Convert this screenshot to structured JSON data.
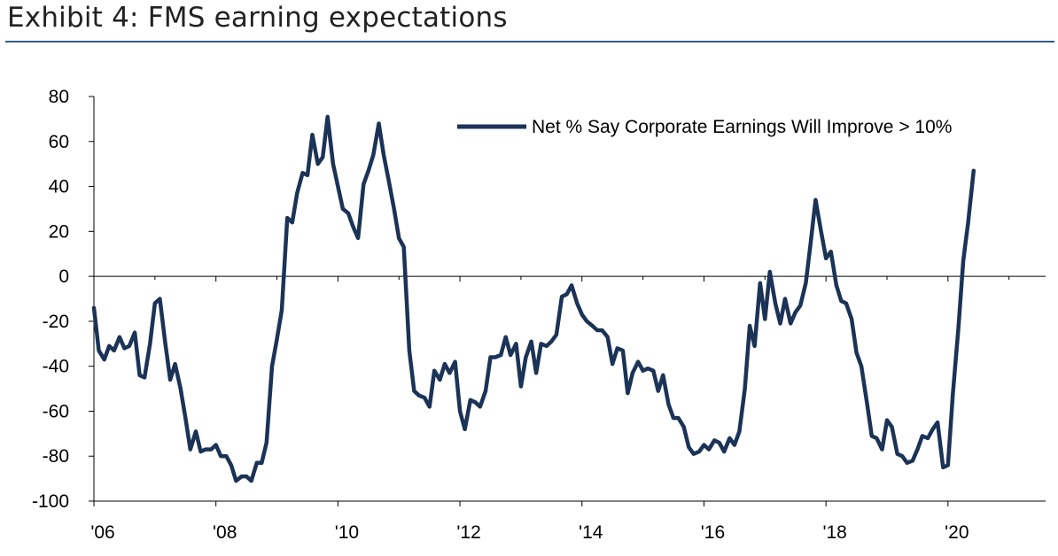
{
  "header": {
    "title": "Exhibit 4: FMS earning expectations"
  },
  "chart_data": {
    "type": "line",
    "title": "Exhibit 4: FMS earning expectations",
    "xlabel": "",
    "ylabel": "",
    "ylim": [
      -100,
      80
    ],
    "xlim": [
      2006,
      2021.6
    ],
    "yticks": [
      "80",
      "60",
      "40",
      "20",
      "0",
      "-20",
      "-40",
      "-60",
      "-80",
      "-100"
    ],
    "xticks": [
      {
        "label": "'06",
        "value": 2006
      },
      {
        "label": "'08",
        "value": 2008
      },
      {
        "label": "'10",
        "value": 2010
      },
      {
        "label": "'12",
        "value": 2012
      },
      {
        "label": "'14",
        "value": 2014
      },
      {
        "label": "'16",
        "value": 2016
      },
      {
        "label": "'18",
        "value": 2018
      },
      {
        "label": "'20",
        "value": 2020
      }
    ],
    "grid": false,
    "legend_position": "top-right",
    "line_color": "#1b3356",
    "series": [
      {
        "name": "Net % Say Corporate Earnings Will Improve > 10%",
        "points": [
          [
            2006.0,
            -14
          ],
          [
            2006.08,
            -33
          ],
          [
            2006.17,
            -37
          ],
          [
            2006.25,
            -31
          ],
          [
            2006.33,
            -33
          ],
          [
            2006.42,
            -27
          ],
          [
            2006.5,
            -32
          ],
          [
            2006.58,
            -31
          ],
          [
            2006.67,
            -25
          ],
          [
            2006.75,
            -44
          ],
          [
            2006.83,
            -45
          ],
          [
            2006.92,
            -30
          ],
          [
            2007.0,
            -12
          ],
          [
            2007.08,
            -10
          ],
          [
            2007.17,
            -30
          ],
          [
            2007.25,
            -46
          ],
          [
            2007.33,
            -39
          ],
          [
            2007.42,
            -50
          ],
          [
            2007.5,
            -63
          ],
          [
            2007.58,
            -77
          ],
          [
            2007.67,
            -69
          ],
          [
            2007.75,
            -78
          ],
          [
            2007.83,
            -77
          ],
          [
            2007.92,
            -77
          ],
          [
            2008.0,
            -75
          ],
          [
            2008.08,
            -80
          ],
          [
            2008.17,
            -80
          ],
          [
            2008.25,
            -84
          ],
          [
            2008.33,
            -91
          ],
          [
            2008.42,
            -89
          ],
          [
            2008.5,
            -89
          ],
          [
            2008.58,
            -91
          ],
          [
            2008.67,
            -83
          ],
          [
            2008.75,
            -83
          ],
          [
            2008.83,
            -74
          ],
          [
            2008.92,
            -40
          ],
          [
            2009.0,
            -28
          ],
          [
            2009.08,
            -15
          ],
          [
            2009.17,
            26
          ],
          [
            2009.25,
            24
          ],
          [
            2009.33,
            37
          ],
          [
            2009.42,
            46
          ],
          [
            2009.5,
            45
          ],
          [
            2009.58,
            63
          ],
          [
            2009.67,
            50
          ],
          [
            2009.75,
            53
          ],
          [
            2009.83,
            71
          ],
          [
            2009.92,
            50
          ],
          [
            2010.0,
            40
          ],
          [
            2010.08,
            30
          ],
          [
            2010.17,
            28
          ],
          [
            2010.25,
            22
          ],
          [
            2010.33,
            17
          ],
          [
            2010.42,
            41
          ],
          [
            2010.5,
            47
          ],
          [
            2010.58,
            54
          ],
          [
            2010.67,
            68
          ],
          [
            2010.75,
            54
          ],
          [
            2010.83,
            43
          ],
          [
            2010.92,
            30
          ],
          [
            2011.0,
            17
          ],
          [
            2011.08,
            13
          ],
          [
            2011.17,
            -33
          ],
          [
            2011.25,
            -51
          ],
          [
            2011.33,
            -53
          ],
          [
            2011.42,
            -54
          ],
          [
            2011.5,
            -58
          ],
          [
            2011.58,
            -42
          ],
          [
            2011.67,
            -46
          ],
          [
            2011.75,
            -39
          ],
          [
            2011.83,
            -43
          ],
          [
            2011.92,
            -38
          ],
          [
            2012.0,
            -60
          ],
          [
            2012.08,
            -68
          ],
          [
            2012.17,
            -55
          ],
          [
            2012.25,
            -56
          ],
          [
            2012.33,
            -58
          ],
          [
            2012.42,
            -51
          ],
          [
            2012.5,
            -36
          ],
          [
            2012.58,
            -36
          ],
          [
            2012.67,
            -35
          ],
          [
            2012.75,
            -27
          ],
          [
            2012.83,
            -35
          ],
          [
            2012.92,
            -30
          ],
          [
            2013.0,
            -49
          ],
          [
            2013.08,
            -36
          ],
          [
            2013.17,
            -29
          ],
          [
            2013.25,
            -43
          ],
          [
            2013.33,
            -30
          ],
          [
            2013.42,
            -31
          ],
          [
            2013.5,
            -29
          ],
          [
            2013.58,
            -26
          ],
          [
            2013.67,
            -9
          ],
          [
            2013.75,
            -8
          ],
          [
            2013.83,
            -4
          ],
          [
            2013.92,
            -12
          ],
          [
            2014.0,
            -17
          ],
          [
            2014.08,
            -20
          ],
          [
            2014.17,
            -22
          ],
          [
            2014.25,
            -24
          ],
          [
            2014.33,
            -24
          ],
          [
            2014.42,
            -27
          ],
          [
            2014.5,
            -39
          ],
          [
            2014.58,
            -32
          ],
          [
            2014.67,
            -33
          ],
          [
            2014.75,
            -52
          ],
          [
            2014.83,
            -43
          ],
          [
            2014.92,
            -38
          ],
          [
            2015.0,
            -42
          ],
          [
            2015.08,
            -41
          ],
          [
            2015.17,
            -42
          ],
          [
            2015.25,
            -51
          ],
          [
            2015.33,
            -44
          ],
          [
            2015.42,
            -57
          ],
          [
            2015.5,
            -63
          ],
          [
            2015.58,
            -63
          ],
          [
            2015.67,
            -67
          ],
          [
            2015.75,
            -76
          ],
          [
            2015.83,
            -79
          ],
          [
            2015.92,
            -78
          ],
          [
            2016.0,
            -75
          ],
          [
            2016.08,
            -77
          ],
          [
            2016.17,
            -73
          ],
          [
            2016.25,
            -74
          ],
          [
            2016.33,
            -78
          ],
          [
            2016.42,
            -72
          ],
          [
            2016.5,
            -75
          ],
          [
            2016.58,
            -69
          ],
          [
            2016.67,
            -50
          ],
          [
            2016.75,
            -22
          ],
          [
            2016.83,
            -31
          ],
          [
            2016.92,
            -3
          ],
          [
            2017.0,
            -19
          ],
          [
            2017.08,
            2
          ],
          [
            2017.17,
            -12
          ],
          [
            2017.25,
            -21
          ],
          [
            2017.33,
            -10
          ],
          [
            2017.42,
            -21
          ],
          [
            2017.5,
            -16
          ],
          [
            2017.58,
            -13
          ],
          [
            2017.67,
            -3
          ],
          [
            2017.75,
            15
          ],
          [
            2017.83,
            34
          ],
          [
            2017.92,
            20
          ],
          [
            2018.0,
            8
          ],
          [
            2018.08,
            11
          ],
          [
            2018.17,
            -4
          ],
          [
            2018.25,
            -11
          ],
          [
            2018.33,
            -12
          ],
          [
            2018.42,
            -19
          ],
          [
            2018.5,
            -34
          ],
          [
            2018.58,
            -40
          ],
          [
            2018.67,
            -56
          ],
          [
            2018.75,
            -71
          ],
          [
            2018.83,
            -72
          ],
          [
            2018.92,
            -77
          ],
          [
            2019.0,
            -64
          ],
          [
            2019.08,
            -67
          ],
          [
            2019.17,
            -79
          ],
          [
            2019.25,
            -80
          ],
          [
            2019.33,
            -83
          ],
          [
            2019.42,
            -82
          ],
          [
            2019.5,
            -77
          ],
          [
            2019.58,
            -71
          ],
          [
            2019.67,
            -72
          ],
          [
            2019.75,
            -68
          ],
          [
            2019.83,
            -65
          ],
          [
            2019.92,
            -85
          ],
          [
            2020.0,
            -84
          ],
          [
            2020.08,
            -52
          ],
          [
            2020.17,
            -23
          ],
          [
            2020.25,
            7
          ],
          [
            2020.33,
            24
          ],
          [
            2020.42,
            47
          ]
        ]
      }
    ]
  }
}
